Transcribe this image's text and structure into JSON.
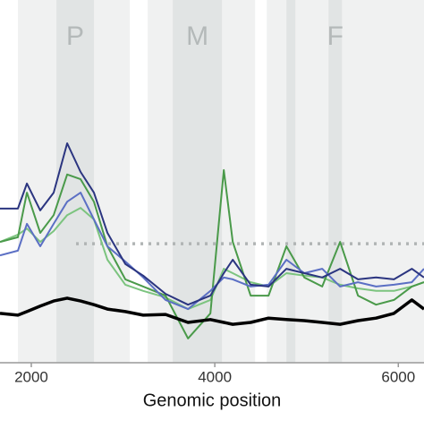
{
  "chart_data": {
    "type": "line",
    "xlabel": "Genomic position",
    "xlim": [
      1659,
      6280
    ],
    "xticks": [
      2000,
      4000,
      6000
    ],
    "ylim": [
      0,
      100
    ],
    "regions": [
      {
        "label": "P",
        "start": 1854,
        "end": 3074,
        "highlights": [
          [
            2274,
            2683
          ]
        ]
      },
      {
        "label": "M",
        "start": 3269,
        "end": 4440,
        "highlights": [
          [
            3542,
            4078
          ]
        ]
      },
      {
        "label": "F",
        "start": 4566,
        "end": 6280,
        "highlights": [
          [
            4781,
            4878
          ],
          [
            5240,
            5386
          ]
        ]
      }
    ],
    "reference_line": {
      "value": 32.8,
      "start": 2488,
      "end": 6280,
      "color": "#b0b4b4"
    },
    "x": [
      1659,
      1854,
      1952,
      2098,
      2244,
      2391,
      2537,
      2683,
      2830,
      3025,
      3220,
      3464,
      3708,
      3952,
      4098,
      4196,
      4391,
      4586,
      4781,
      4976,
      5171,
      5366,
      5561,
      5757,
      5952,
      6147,
      6280
    ],
    "series": [
      {
        "color": "#7cc47f",
        "values": [
          33.3,
          35.3,
          37.0,
          33.3,
          36.3,
          40.7,
          42.7,
          39.5,
          28.4,
          21.5,
          19.8,
          18.0,
          14.8,
          17.3,
          25.9,
          24.7,
          22.2,
          21.0,
          24.7,
          24.0,
          23.5,
          21.5,
          20.5,
          19.8,
          19.8,
          21.0,
          22.2
        ]
      },
      {
        "color": "#4a9a4a",
        "values": [
          33.3,
          34.6,
          46.9,
          35.8,
          40.7,
          51.9,
          50.6,
          44.4,
          32.1,
          23.0,
          21.0,
          18.5,
          6.7,
          13.6,
          53.1,
          33.3,
          18.5,
          18.5,
          32.1,
          23.5,
          21.0,
          33.3,
          18.5,
          16.0,
          17.3,
          21.0,
          22.2
        ]
      },
      {
        "color": "#5b6fc4",
        "values": [
          29.6,
          30.9,
          38.3,
          32.1,
          38.3,
          44.4,
          46.9,
          39.5,
          32.1,
          27.9,
          23.5,
          17.3,
          14.8,
          19.8,
          23.5,
          23.0,
          21.0,
          21.5,
          28.4,
          24.7,
          25.9,
          21.0,
          22.2,
          21.0,
          21.5,
          22.2,
          25.9
        ]
      },
      {
        "color": "#2b3580",
        "values": [
          42.5,
          42.5,
          49.4,
          42.0,
          46.9,
          60.5,
          52.6,
          46.9,
          35.8,
          27.2,
          24.0,
          19.0,
          16.0,
          18.5,
          24.7,
          28.4,
          21.5,
          21.0,
          25.9,
          24.7,
          23.5,
          25.9,
          23.0,
          23.5,
          23.0,
          25.9,
          23.5
        ]
      },
      {
        "color": "#000000",
        "values": [
          13.6,
          13.1,
          14.1,
          15.6,
          17.0,
          17.8,
          17.0,
          16.0,
          14.8,
          14.1,
          13.1,
          13.3,
          11.1,
          11.9,
          11.1,
          10.6,
          11.1,
          12.3,
          11.9,
          11.6,
          11.1,
          10.6,
          11.6,
          12.3,
          13.6,
          17.3,
          14.8
        ]
      }
    ]
  }
}
